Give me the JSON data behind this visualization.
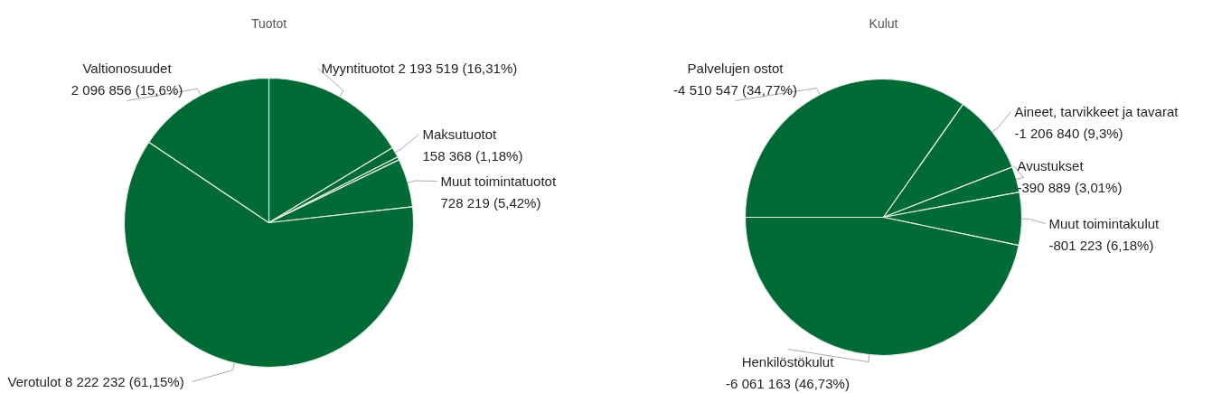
{
  "chart_data": [
    {
      "type": "pie",
      "title": "Tuotot",
      "categories": [
        "Myyntituotot",
        "Maksutuotot",
        null,
        "Muut toimintatuotot",
        "Verotulot",
        "Valtionosuudet"
      ],
      "values": [
        2193519,
        158368,
        46000,
        728219,
        8222232,
        2096856
      ],
      "colors": [
        "#006a34",
        "#006a34",
        "#006a34",
        "#006a34",
        "#006a34",
        "#006a34"
      ],
      "value_labels": [
        "2 193 519 (16,31%)",
        "158 368 (1,18%)",
        null,
        "728 219 (5,42%)",
        "8 222 232 (61,15%)",
        "2 096 856 (15,6%)"
      ],
      "legend": false
    },
    {
      "type": "pie",
      "title": "Kulut",
      "categories": [
        "Palvelujen ostot",
        "Aineet, tarvikkeet ja tavarat",
        "Avustukset",
        "Muut toimintakulut",
        "Henkilöstökulut"
      ],
      "values": [
        34.77,
        9.3,
        3.01,
        6.18,
        46.73
      ],
      "colors": [
        "#006a34",
        "#006a34",
        "#006a34",
        "#006a34",
        "#006a34"
      ],
      "value_labels": [
        "-4 510 547 (34,77%)",
        "-1 206 840 (9,3%)",
        "-390 889 (3,01%)",
        "-801 223 (6,18%)",
        "-6 061 163 (46,73%)"
      ],
      "legend": false
    }
  ]
}
